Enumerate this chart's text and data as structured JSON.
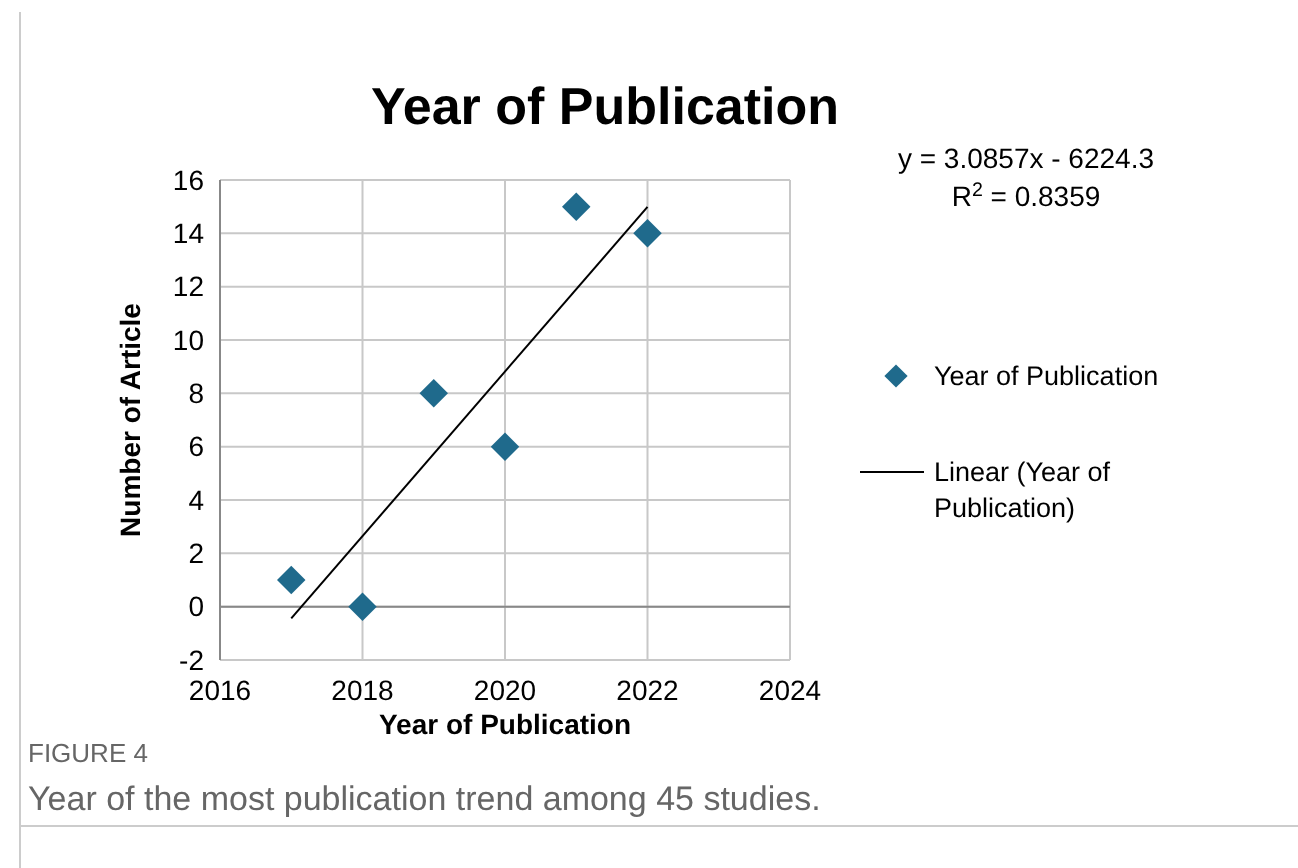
{
  "chart_data": {
    "type": "scatter",
    "title": "Year of Publication",
    "xlabel": "Year of Publication",
    "ylabel": "Number of Article",
    "x": [
      2017,
      2018,
      2019,
      2020,
      2021,
      2022
    ],
    "series": [
      {
        "name": "Year of Publication",
        "color": "#1f6a8c",
        "marker": "diamond",
        "values": [
          1,
          0,
          8,
          6,
          15,
          14
        ]
      },
      {
        "name": "Linear (Year of Publication)",
        "type": "line",
        "color": "#000000",
        "x": [
          2017,
          2022
        ],
        "values": [
          -0.44,
          14.99
        ],
        "marker": "none",
        "line_style": "solid"
      }
    ],
    "xlim": [
      2016,
      2024
    ],
    "xticks": [
      2016,
      2018,
      2020,
      2022,
      2024
    ],
    "ylim": [
      -2,
      16
    ],
    "yticks": [
      -2,
      0,
      2,
      4,
      6,
      8,
      10,
      12,
      14,
      16
    ],
    "grid": true,
    "legend": "right",
    "annotations": [
      "y = 3.0857x - 6224.3",
      "R$^{2}$ = 0.8359",
      "FIGURE 4",
      "Year of the most publication trend among 45 studies."
    ]
  }
}
